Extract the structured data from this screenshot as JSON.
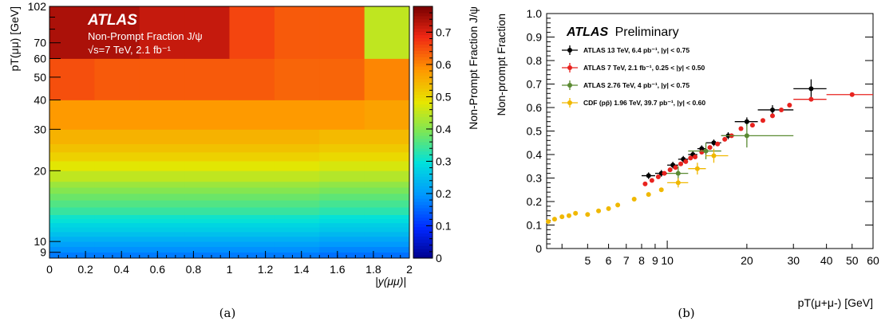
{
  "chart_data": [
    {
      "type": "heatmap",
      "panel_caption": "(a)",
      "atlas_label": "ATLAS",
      "annotation_lines": [
        "Non-Prompt Fraction J/ψ",
        "√s=7 TeV, 2.1 fb⁻¹"
      ],
      "xlabel": "|y(μμ)|",
      "ylabel": "pT(μμ) [GeV]",
      "zlabel": "Non-Prompt Fraction J/ψ",
      "x_tick_labels": [
        "0",
        "0.2",
        "0.4",
        "0.6",
        "0.8",
        "1",
        "1.2",
        "1.4",
        "1.6",
        "1.8",
        "2"
      ],
      "y_tick_labels": [
        "9",
        "10",
        "20",
        "30",
        "40",
        "50",
        "60",
        "70",
        "102"
      ],
      "z_tick_labels": [
        "0",
        "0.1",
        "0.2",
        "0.3",
        "0.4",
        "0.5",
        "0.6",
        "0.7"
      ],
      "xlim": [
        0,
        2
      ],
      "ylim": [
        8.5,
        100
      ],
      "zlim": [
        0,
        0.78
      ],
      "y_scale": "log",
      "x_edges": [
        0,
        0.25,
        0.5,
        0.75,
        1.0,
        1.25,
        1.5,
        1.75,
        2.0
      ],
      "y_edges": [
        8.5,
        9.0,
        9.5,
        10.0,
        10.5,
        11.0,
        11.5,
        12.0,
        12.5,
        13.0,
        14.0,
        15.0,
        16.0,
        17.0,
        18.0,
        20.0,
        22.0,
        24.0,
        26.0,
        30.0,
        40.0,
        60.0,
        100.0
      ],
      "z_values": [
        [
          0.17,
          0.17,
          0.17,
          0.17,
          0.17,
          0.17,
          0.16,
          0.16
        ],
        [
          0.19,
          0.19,
          0.19,
          0.19,
          0.19,
          0.19,
          0.18,
          0.18
        ],
        [
          0.21,
          0.21,
          0.21,
          0.21,
          0.21,
          0.21,
          0.2,
          0.2
        ],
        [
          0.23,
          0.23,
          0.23,
          0.23,
          0.23,
          0.23,
          0.22,
          0.22
        ],
        [
          0.25,
          0.25,
          0.25,
          0.25,
          0.25,
          0.25,
          0.24,
          0.24
        ],
        [
          0.27,
          0.27,
          0.27,
          0.27,
          0.27,
          0.27,
          0.26,
          0.26
        ],
        [
          0.28,
          0.28,
          0.28,
          0.28,
          0.28,
          0.28,
          0.27,
          0.27
        ],
        [
          0.3,
          0.3,
          0.3,
          0.3,
          0.3,
          0.3,
          0.29,
          0.29
        ],
        [
          0.31,
          0.31,
          0.31,
          0.31,
          0.31,
          0.31,
          0.3,
          0.3
        ],
        [
          0.34,
          0.34,
          0.34,
          0.34,
          0.34,
          0.34,
          0.33,
          0.33
        ],
        [
          0.36,
          0.36,
          0.36,
          0.36,
          0.36,
          0.36,
          0.35,
          0.35
        ],
        [
          0.38,
          0.38,
          0.38,
          0.38,
          0.38,
          0.38,
          0.37,
          0.37
        ],
        [
          0.4,
          0.4,
          0.4,
          0.4,
          0.4,
          0.4,
          0.39,
          0.39
        ],
        [
          0.42,
          0.42,
          0.42,
          0.42,
          0.42,
          0.42,
          0.41,
          0.41
        ],
        [
          0.45,
          0.45,
          0.45,
          0.45,
          0.45,
          0.45,
          0.44,
          0.44
        ],
        [
          0.48,
          0.48,
          0.48,
          0.48,
          0.48,
          0.48,
          0.47,
          0.47
        ],
        [
          0.51,
          0.51,
          0.51,
          0.51,
          0.51,
          0.51,
          0.5,
          0.5
        ],
        [
          0.53,
          0.53,
          0.53,
          0.53,
          0.53,
          0.53,
          0.52,
          0.52
        ],
        [
          0.55,
          0.55,
          0.55,
          0.55,
          0.55,
          0.55,
          0.54,
          0.54
        ],
        [
          0.58,
          0.58,
          0.58,
          0.58,
          0.58,
          0.58,
          0.58,
          0.57
        ],
        [
          0.65,
          0.64,
          0.64,
          0.64,
          0.64,
          0.63,
          0.63,
          0.6
        ],
        [
          0.74,
          0.74,
          0.72,
          0.72,
          0.66,
          0.64,
          0.64,
          0.45
        ]
      ]
    },
    {
      "type": "scatter",
      "panel_caption": "(b)",
      "atlas_label": "ATLAS",
      "atlas_suffix": "Preliminary",
      "xlabel": "pT(μ+μ-) [GeV]",
      "ylabel": "Non-prompt Fraction",
      "x_scale": "log",
      "xlim": [
        3.5,
        60
      ],
      "ylim": [
        0,
        1.0
      ],
      "x_tick_labels": [
        "5",
        "6",
        "7",
        "8",
        "9",
        "10",
        "20",
        "30",
        "40",
        "50",
        "60"
      ],
      "y_tick_labels": [
        "0",
        "0.1",
        "0.2",
        "0.3",
        "0.4",
        "0.5",
        "0.6",
        "0.7",
        "0.8",
        "0.9",
        "1.0"
      ],
      "legend_position": "top-left",
      "series": [
        {
          "name": "ATLAS 13 TeV, 6.4 pb⁻¹, |y| < 0.75",
          "color": "#000000",
          "points": [
            {
              "x": 8.5,
              "y": 0.31,
              "xerr": [
                8,
                9
              ],
              "yerr": 0.014
            },
            {
              "x": 9.5,
              "y": 0.32,
              "xerr": [
                9,
                10
              ],
              "yerr": 0.014
            },
            {
              "x": 10.5,
              "y": 0.355,
              "xerr": [
                10,
                11
              ],
              "yerr": 0.014
            },
            {
              "x": 11.5,
              "y": 0.38,
              "xerr": [
                11,
                12
              ],
              "yerr": 0.014
            },
            {
              "x": 12.5,
              "y": 0.4,
              "xerr": [
                12,
                13
              ],
              "yerr": 0.014
            },
            {
              "x": 13.5,
              "y": 0.425,
              "xerr": [
                13,
                14
              ],
              "yerr": 0.014
            },
            {
              "x": 15,
              "y": 0.45,
              "xerr": [
                14,
                16
              ],
              "yerr": 0.014
            },
            {
              "x": 17,
              "y": 0.48,
              "xerr": [
                16,
                18
              ],
              "yerr": 0.015
            },
            {
              "x": 20,
              "y": 0.54,
              "xerr": [
                18,
                22
              ],
              "yerr": 0.018
            },
            {
              "x": 25,
              "y": 0.59,
              "xerr": [
                22,
                30
              ],
              "yerr": 0.02
            },
            {
              "x": 35,
              "y": 0.68,
              "xerr": [
                30,
                40
              ],
              "yerr": 0.04
            }
          ]
        },
        {
          "name": "ATLAS 7 TeV, 2.1 fb⁻¹, 0.25 < |y| < 0.50",
          "color": "#e8231f",
          "points": [
            {
              "x": 8.25,
              "y": 0.275
            },
            {
              "x": 8.75,
              "y": 0.29
            },
            {
              "x": 9.25,
              "y": 0.305
            },
            {
              "x": 9.75,
              "y": 0.32
            },
            {
              "x": 10.25,
              "y": 0.335
            },
            {
              "x": 10.75,
              "y": 0.345
            },
            {
              "x": 11.25,
              "y": 0.36
            },
            {
              "x": 11.75,
              "y": 0.37
            },
            {
              "x": 12.25,
              "y": 0.385
            },
            {
              "x": 12.75,
              "y": 0.39
            },
            {
              "x": 13.5,
              "y": 0.41
            },
            {
              "x": 14.5,
              "y": 0.43
            },
            {
              "x": 15.5,
              "y": 0.445
            },
            {
              "x": 16.5,
              "y": 0.465
            },
            {
              "x": 17.5,
              "y": 0.48
            },
            {
              "x": 19,
              "y": 0.51
            },
            {
              "x": 21,
              "y": 0.525
            },
            {
              "x": 23,
              "y": 0.545
            },
            {
              "x": 25,
              "y": 0.565
            },
            {
              "x": 27,
              "y": 0.59
            },
            {
              "x": 29,
              "y": 0.61
            },
            {
              "x": 35,
              "y": 0.635,
              "xerr": [
                30,
                40
              ]
            },
            {
              "x": 50,
              "y": 0.655,
              "xerr": [
                40,
                70
              ]
            }
          ]
        },
        {
          "name": "ATLAS 2.76 TeV, 4 pb⁻¹, |y| < 0.75",
          "color": "#5a8a32",
          "points": [
            {
              "x": 11,
              "y": 0.32,
              "xerr": [
                10,
                12
              ],
              "yerr": 0.03
            },
            {
              "x": 14,
              "y": 0.415,
              "xerr": [
                12,
                16
              ],
              "yerr": 0.035
            },
            {
              "x": 20,
              "y": 0.48,
              "xerr": [
                16,
                30
              ],
              "yerr": 0.05
            }
          ]
        },
        {
          "name": "CDF (pp̄) 1.96 TeV, 39.7 pb⁻¹, |y| < 0.60",
          "color": "#f0b800",
          "points": [
            {
              "x": 3.55,
              "y": 0.115
            },
            {
              "x": 3.75,
              "y": 0.125
            },
            {
              "x": 4.0,
              "y": 0.135
            },
            {
              "x": 4.25,
              "y": 0.14
            },
            {
              "x": 4.5,
              "y": 0.15
            },
            {
              "x": 5.0,
              "y": 0.145
            },
            {
              "x": 5.5,
              "y": 0.16
            },
            {
              "x": 6.0,
              "y": 0.17
            },
            {
              "x": 6.5,
              "y": 0.185
            },
            {
              "x": 7.5,
              "y": 0.21
            },
            {
              "x": 8.5,
              "y": 0.23
            },
            {
              "x": 9.5,
              "y": 0.25
            },
            {
              "x": 11,
              "y": 0.28,
              "xerr": [
                10,
                12
              ],
              "yerr": 0.02
            },
            {
              "x": 13,
              "y": 0.34,
              "xerr": [
                12,
                14
              ],
              "yerr": 0.025
            },
            {
              "x": 15,
              "y": 0.395,
              "xerr": [
                14,
                17
              ],
              "yerr": 0.03
            }
          ]
        }
      ]
    }
  ]
}
